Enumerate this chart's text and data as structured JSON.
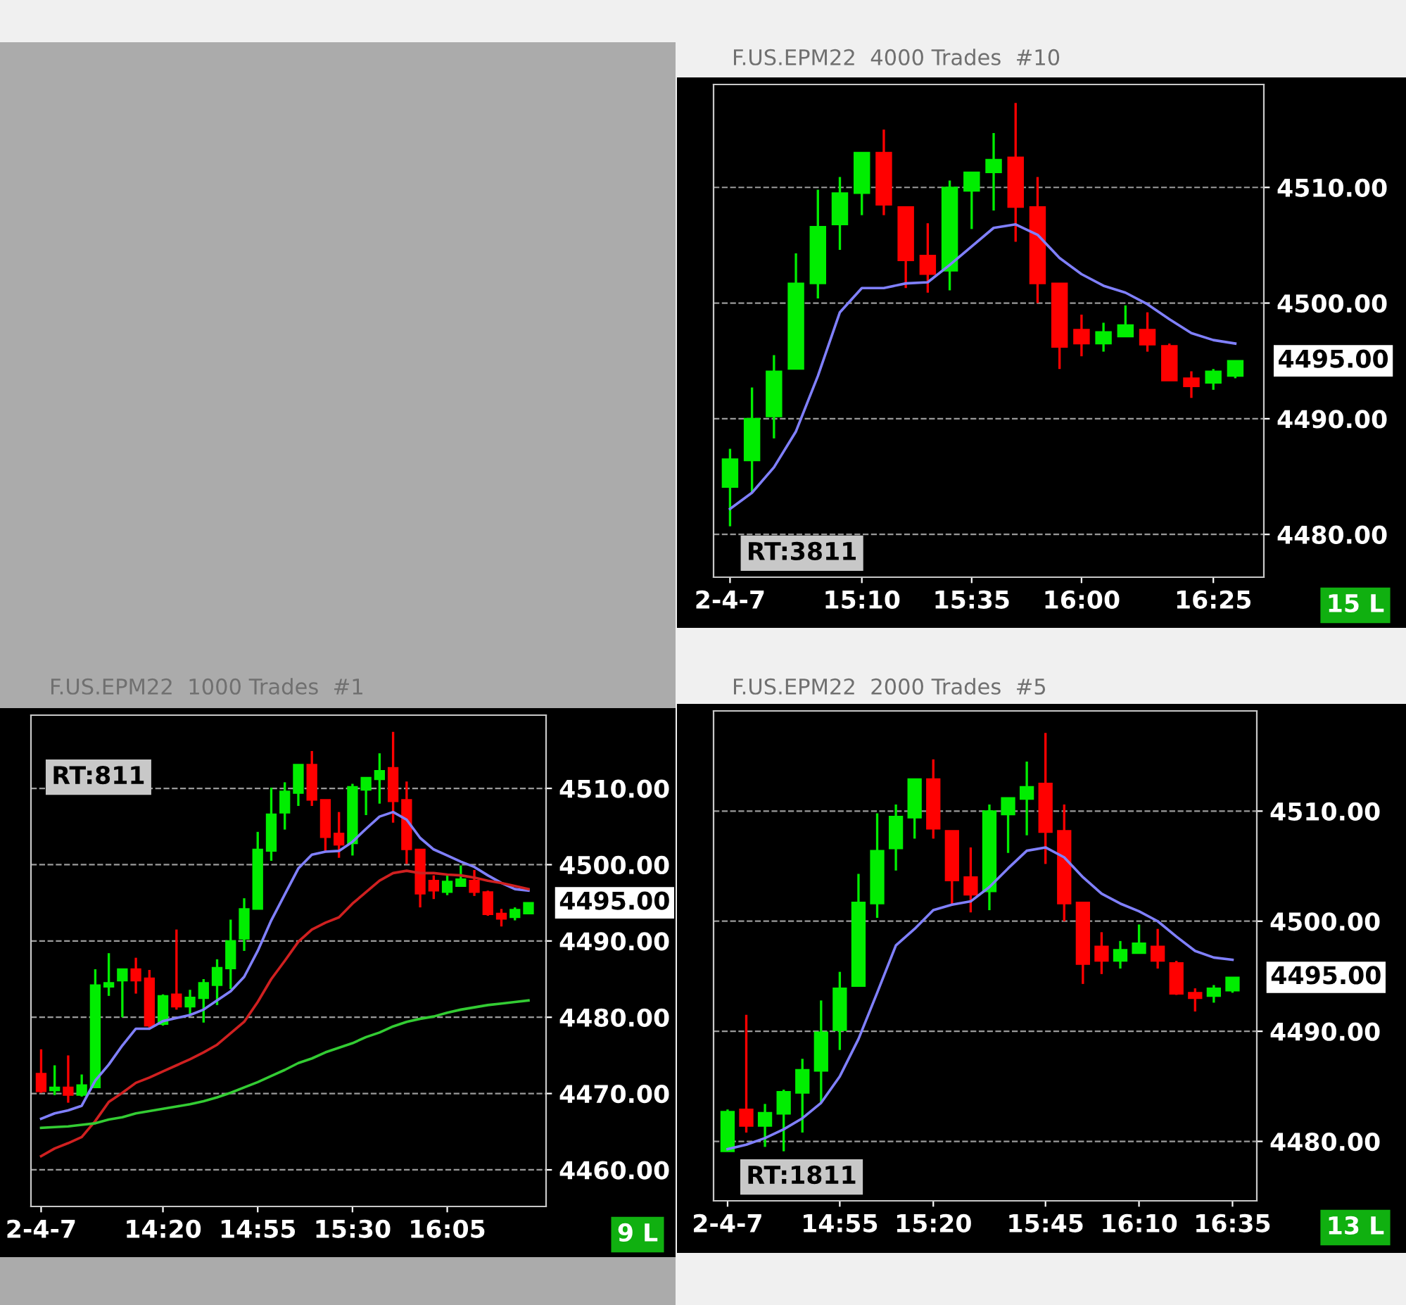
{
  "chart_data": [
    {
      "type": "candlestick",
      "title": "F.US.EPM22  4000 Trades  #10",
      "categories": [
        "2-4-7",
        null,
        null,
        null,
        null,
        null,
        "15:10",
        null,
        null,
        null,
        null,
        "15:35",
        null,
        null,
        null,
        null,
        "16:00",
        null,
        null,
        null,
        null,
        null,
        "16:25",
        null
      ],
      "ohlc": [
        [
          4484.1,
          4487.4,
          4480.7,
          4486.5
        ],
        [
          4486.4,
          4492.7,
          4483.6,
          4490.0
        ],
        [
          4490.2,
          4495.5,
          4488.3,
          4494.1
        ],
        [
          4494.3,
          4504.3,
          4494.3,
          4501.7
        ],
        [
          4501.7,
          4509.8,
          4500.4,
          4506.6
        ],
        [
          4506.8,
          4510.9,
          4504.6,
          4509.5
        ],
        [
          4509.5,
          4513.0,
          4507.6,
          4513.0
        ],
        [
          4513.0,
          4515.0,
          4507.6,
          4508.5
        ],
        [
          4508.3,
          4508.3,
          4501.3,
          4503.7
        ],
        [
          4504.1,
          4506.9,
          4500.9,
          4502.5
        ],
        [
          4502.8,
          4510.6,
          4501.1,
          4510.0
        ],
        [
          4509.7,
          4511.3,
          4506.4,
          4511.3
        ],
        [
          4511.3,
          4514.7,
          4508.0,
          4512.4
        ],
        [
          4512.6,
          4517.3,
          4505.3,
          4508.3
        ],
        [
          4508.3,
          4510.9,
          4500.0,
          4501.7
        ],
        [
          4501.7,
          4501.7,
          4494.3,
          4496.2
        ],
        [
          4497.7,
          4499.0,
          4495.4,
          4496.5
        ],
        [
          4496.5,
          4498.3,
          4495.8,
          4497.5
        ],
        [
          4497.1,
          4499.8,
          4497.1,
          4498.1
        ],
        [
          4497.7,
          4499.2,
          4495.8,
          4496.4
        ],
        [
          4496.3,
          4496.5,
          4493.3,
          4493.3
        ],
        [
          4493.5,
          4494.1,
          4491.8,
          4492.8
        ],
        [
          4493.1,
          4494.3,
          4492.5,
          4494.1
        ],
        [
          4493.7,
          4495.0,
          4493.5,
          4495.0
        ]
      ],
      "colors": [
        "#00ee00",
        "#00ee00",
        "#00ee00",
        "#00ee00",
        "#00ee00",
        "#00ee00",
        "#00ee00",
        "#ff0000",
        "#ff0000",
        "#ff0000",
        "#00ee00",
        "#00ee00",
        "#00ee00",
        "#ff0000",
        "#ff0000",
        "#ff0000",
        "#ff0000",
        "#00ee00",
        "#00ee00",
        "#ff0000",
        "#ff0000",
        "#ff0000",
        "#00ee00",
        "#00ee00"
      ],
      "series": [
        {
          "type": "line",
          "color": "#8080ff",
          "values": [
            4482.2,
            4483.6,
            4485.8,
            4488.9,
            4493.7,
            4499.2,
            4501.3,
            4501.3,
            4501.7,
            4501.8,
            4503.3,
            4504.9,
            4506.5,
            4506.8,
            4505.9,
            4503.9,
            4502.5,
            4501.5,
            4500.9,
            4499.9,
            4498.6,
            4497.4,
            4496.8,
            4496.5
          ]
        }
      ],
      "ylim": [
        4476.3,
        4518.9
      ],
      "yticks": [
        {
          "value": 4480,
          "label": "4480.00"
        },
        {
          "value": 4490,
          "label": "4490.00"
        },
        {
          "value": 4500,
          "label": "4500.00"
        },
        {
          "value": 4510,
          "label": "4510.00"
        }
      ],
      "grid": "y",
      "annotations": [
        "RT:3811",
        "15 L",
        "4495.00"
      ]
    },
    {
      "type": "candlestick",
      "title": "F.US.EPM22  1000 Trades  #1",
      "categories": [
        "2-4-7",
        null,
        null,
        null,
        null,
        null,
        null,
        null,
        null,
        "14:20",
        null,
        null,
        null,
        null,
        null,
        null,
        "14:55",
        null,
        null,
        null,
        null,
        null,
        null,
        "15:30",
        null,
        null,
        null,
        null,
        null,
        null,
        "16:05",
        null,
        null,
        null,
        null,
        null,
        null
      ],
      "ohlc": [
        [
          4472.6,
          4475.8,
          4470.1,
          4470.3
        ],
        [
          4470.4,
          4473.7,
          4469.8,
          4470.8
        ],
        [
          4470.8,
          4475.0,
          4468.8,
          4469.8
        ],
        [
          4469.8,
          4472.5,
          4469.6,
          4471.1
        ],
        [
          4470.8,
          4486.3,
          4470.8,
          4484.2
        ],
        [
          4484.0,
          4488.4,
          4482.8,
          4484.5
        ],
        [
          4484.8,
          4486.3,
          4480.0,
          4486.3
        ],
        [
          4486.3,
          4487.8,
          4483.1,
          4484.8
        ],
        [
          4485.1,
          4486.2,
          4478.5,
          4478.9
        ],
        [
          4479.1,
          4483.0,
          4478.9,
          4482.8
        ],
        [
          4483.0,
          4491.5,
          4481.0,
          4481.4
        ],
        [
          4481.4,
          4483.6,
          4480.3,
          4482.6
        ],
        [
          4482.5,
          4485.0,
          4479.3,
          4484.5
        ],
        [
          4484.2,
          4487.6,
          4481.6,
          4486.5
        ],
        [
          4486.4,
          4492.8,
          4483.7,
          4490.0
        ],
        [
          4490.3,
          4495.6,
          4488.7,
          4494.2
        ],
        [
          4494.2,
          4504.3,
          4494.2,
          4502.0
        ],
        [
          4501.8,
          4510.1,
          4500.5,
          4506.6
        ],
        [
          4506.8,
          4510.8,
          4504.6,
          4509.6
        ],
        [
          4509.4,
          4513.1,
          4507.7,
          4513.1
        ],
        [
          4513.1,
          4514.9,
          4507.7,
          4508.5
        ],
        [
          4508.5,
          4508.5,
          4501.8,
          4503.6
        ],
        [
          4504.1,
          4506.9,
          4500.9,
          4502.6
        ],
        [
          4502.8,
          4510.6,
          4501.2,
          4510.2
        ],
        [
          4509.8,
          4511.4,
          4506.5,
          4511.4
        ],
        [
          4511.2,
          4514.6,
          4508.0,
          4512.3
        ],
        [
          4512.7,
          4517.4,
          4505.5,
          4508.3
        ],
        [
          4508.5,
          4510.9,
          4500.1,
          4502.0
        ],
        [
          4502.0,
          4502.0,
          4494.4,
          4496.2
        ],
        [
          4497.9,
          4498.6,
          4495.5,
          4496.6
        ],
        [
          4496.4,
          4498.6,
          4496.0,
          4497.8
        ],
        [
          4497.2,
          4499.9,
          4497.2,
          4498.1
        ],
        [
          4497.9,
          4499.3,
          4495.9,
          4496.4
        ],
        [
          4496.4,
          4496.6,
          4493.3,
          4493.5
        ],
        [
          4493.6,
          4494.2,
          4491.9,
          4492.9
        ],
        [
          4493.1,
          4494.4,
          4492.7,
          4494.1
        ],
        [
          4493.6,
          4495.0,
          4493.6,
          4495.0
        ]
      ],
      "colors": [
        "#ff0000",
        "#00ee00",
        "#ff0000",
        "#00ee00",
        "#00ee00",
        "#00ee00",
        "#00ee00",
        "#ff0000",
        "#ff0000",
        "#00ee00",
        "#ff0000",
        "#00ee00",
        "#00ee00",
        "#00ee00",
        "#00ee00",
        "#00ee00",
        "#00ee00",
        "#00ee00",
        "#00ee00",
        "#00ee00",
        "#ff0000",
        "#ff0000",
        "#ff0000",
        "#00ee00",
        "#00ee00",
        "#00ee00",
        "#ff0000",
        "#ff0000",
        "#ff0000",
        "#ff0000",
        "#00ee00",
        "#00ee00",
        "#ff0000",
        "#ff0000",
        "#ff0000",
        "#00ee00",
        "#00ee00"
      ],
      "series": [
        {
          "type": "line",
          "color": "#8080ff",
          "values": [
            4466.7,
            4467.4,
            4467.8,
            4468.4,
            4471.7,
            4473.8,
            4476.3,
            4478.5,
            4478.5,
            4479.5,
            4479.9,
            4480.3,
            4481.0,
            4482.2,
            4483.4,
            4485.3,
            4488.7,
            4492.7,
            4496.1,
            4499.5,
            4501.3,
            4501.7,
            4501.8,
            4503.0,
            4504.7,
            4506.3,
            4506.9,
            4505.9,
            4503.5,
            4502.0,
            4501.2,
            4500.4,
            4499.7,
            4498.6,
            4497.6,
            4496.8,
            4496.6
          ]
        },
        {
          "type": "line",
          "color": "#d02020",
          "values": [
            4461.8,
            4462.8,
            4463.5,
            4464.3,
            4466.4,
            4468.9,
            4470.1,
            4471.4,
            4472.1,
            4472.9,
            4473.7,
            4474.5,
            4475.4,
            4476.4,
            4477.9,
            4479.4,
            4482.0,
            4485.0,
            4487.4,
            4489.9,
            4491.5,
            4492.4,
            4493.1,
            4494.9,
            4496.4,
            4497.9,
            4498.9,
            4499.2,
            4498.9,
            4498.9,
            4498.7,
            4498.6,
            4498.3,
            4497.9,
            4497.6,
            4497.2,
            4496.8
          ]
        },
        {
          "type": "line",
          "color": "#33cc33",
          "values": [
            4465.5,
            4465.6,
            4465.7,
            4465.9,
            4466.1,
            4466.6,
            4466.9,
            4467.4,
            4467.7,
            4468.0,
            4468.3,
            4468.6,
            4469.0,
            4469.5,
            4470.1,
            4470.8,
            4471.5,
            4472.3,
            4473.1,
            4474.0,
            4474.6,
            4475.4,
            4476.0,
            4476.6,
            4477.4,
            4478.0,
            4478.8,
            4479.4,
            4479.8,
            4480.1,
            4480.6,
            4481.0,
            4481.3,
            4481.6,
            4481.8,
            4482.0,
            4482.2
          ]
        }
      ],
      "ylim": [
        4455.2,
        4519.6
      ],
      "yticks": [
        {
          "value": 4460,
          "label": "4460.00"
        },
        {
          "value": 4470,
          "label": "4470.00"
        },
        {
          "value": 4480,
          "label": "4480.00"
        },
        {
          "value": 4490,
          "label": "4490.00"
        },
        {
          "value": 4500,
          "label": "4500.00"
        },
        {
          "value": 4510,
          "label": "4510.00"
        }
      ],
      "grid": "y",
      "annotations": [
        "RT:811",
        "9 L",
        "4495.00"
      ]
    },
    {
      "type": "candlestick",
      "title": "F.US.EPM22  2000 Trades  #5",
      "categories": [
        "2-4-7",
        null,
        null,
        null,
        null,
        null,
        "14:55",
        null,
        null,
        null,
        null,
        "15:20",
        null,
        null,
        null,
        null,
        null,
        "15:45",
        null,
        null,
        null,
        null,
        "16:10",
        null,
        null,
        null,
        null,
        "16:35"
      ],
      "ohlc": [
        [
          4479.1,
          4482.9,
          4479.1,
          4482.7
        ],
        [
          4482.9,
          4491.5,
          4480.8,
          4481.4
        ],
        [
          4481.4,
          4483.4,
          4479.5,
          4482.6
        ],
        [
          4482.5,
          4484.7,
          4479.1,
          4484.5
        ],
        [
          4484.4,
          4487.5,
          4480.8,
          4486.5
        ],
        [
          4486.4,
          4492.8,
          4483.5,
          4489.9
        ],
        [
          4490.1,
          4495.4,
          4488.3,
          4493.9
        ],
        [
          4494.1,
          4504.3,
          4494.1,
          4501.7
        ],
        [
          4501.6,
          4509.8,
          4500.3,
          4506.4
        ],
        [
          4506.6,
          4510.6,
          4504.6,
          4509.5
        ],
        [
          4509.4,
          4512.9,
          4507.5,
          4512.9
        ],
        [
          4512.9,
          4514.7,
          4507.5,
          4508.4
        ],
        [
          4508.2,
          4508.2,
          4501.4,
          4503.7
        ],
        [
          4504.0,
          4506.7,
          4500.8,
          4502.4
        ],
        [
          4502.7,
          4510.6,
          4501.0,
          4510.0
        ],
        [
          4509.7,
          4511.2,
          4506.2,
          4511.2
        ],
        [
          4511.1,
          4514.5,
          4507.8,
          4512.2
        ],
        [
          4512.5,
          4517.1,
          4505.2,
          4508.1
        ],
        [
          4508.2,
          4510.6,
          4500.0,
          4501.6
        ],
        [
          4501.7,
          4501.7,
          4494.3,
          4496.1
        ],
        [
          4497.7,
          4499.0,
          4495.2,
          4496.4
        ],
        [
          4496.4,
          4498.2,
          4495.7,
          4497.4
        ],
        [
          4497.1,
          4499.7,
          4497.1,
          4498.0
        ],
        [
          4497.7,
          4499.3,
          4495.7,
          4496.4
        ],
        [
          4496.2,
          4496.4,
          4493.3,
          4493.4
        ],
        [
          4493.5,
          4493.9,
          4491.8,
          4493.0
        ],
        [
          4493.2,
          4494.2,
          4492.6,
          4493.9
        ],
        [
          4493.7,
          4494.9,
          4493.5,
          4494.9
        ]
      ],
      "colors": [
        "#00ee00",
        "#ff0000",
        "#00ee00",
        "#00ee00",
        "#00ee00",
        "#00ee00",
        "#00ee00",
        "#00ee00",
        "#00ee00",
        "#00ee00",
        "#00ee00",
        "#ff0000",
        "#ff0000",
        "#ff0000",
        "#00ee00",
        "#00ee00",
        "#00ee00",
        "#ff0000",
        "#ff0000",
        "#ff0000",
        "#ff0000",
        "#00ee00",
        "#00ee00",
        "#ff0000",
        "#ff0000",
        "#ff0000",
        "#00ee00",
        "#00ee00"
      ],
      "series": [
        {
          "type": "line",
          "color": "#8080ff",
          "values": [
            4479.3,
            4479.7,
            4480.3,
            4481.1,
            4482.1,
            4483.5,
            4485.9,
            4489.3,
            4493.5,
            4497.8,
            4499.3,
            4501.0,
            4501.5,
            4501.8,
            4503.1,
            4504.8,
            4506.4,
            4506.7,
            4505.8,
            4504.0,
            4502.5,
            4501.6,
            4500.9,
            4500.0,
            4498.6,
            4497.3,
            4496.7,
            4496.5
          ]
        }
      ],
      "ylim": [
        4474.6,
        4519.1
      ],
      "yticks": [
        {
          "value": 4480,
          "label": "4480.00"
        },
        {
          "value": 4490,
          "label": "4490.00"
        },
        {
          "value": 4500,
          "label": "4500.00"
        },
        {
          "value": 4510,
          "label": "4510.00"
        }
      ],
      "grid": "y",
      "annotations": [
        "RT:1811",
        "13 L",
        "4495.00"
      ]
    }
  ]
}
